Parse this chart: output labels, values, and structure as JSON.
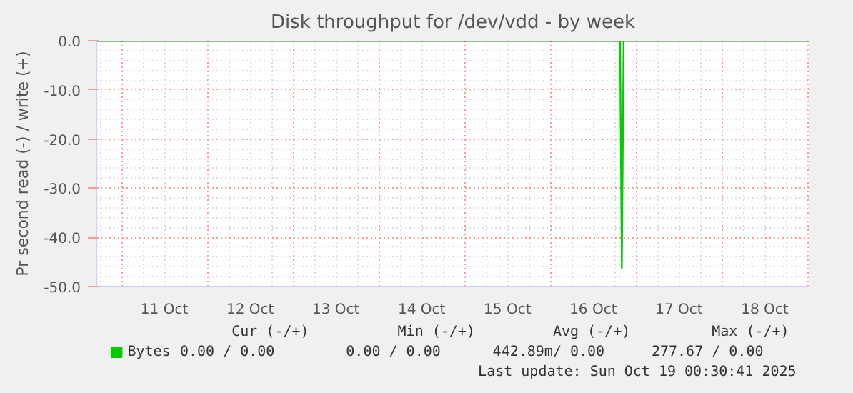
{
  "chart_data": {
    "type": "line",
    "title": "Disk throughput for /dev/vdd - by week",
    "ylabel": "Pr second read (-) / write (+)",
    "x": [
      "2025-10-10T17:00",
      "2025-10-16T19:30",
      "2025-10-16T20:00",
      "2025-10-16T20:30",
      "2025-10-19T00:30"
    ],
    "series": [
      {
        "name": "Bytes",
        "color": "#00cc00",
        "values": [
          0,
          0,
          -46.3,
          0,
          0
        ]
      }
    ],
    "xlim": [
      "2025-10-10T17:00",
      "2025-10-19T00:30"
    ],
    "xticks": [
      {
        "value": "2025-10-11T00:00",
        "label": null
      },
      {
        "value": "2025-10-11T12:00",
        "label": "11 Oct"
      },
      {
        "value": "2025-10-12T00:00",
        "label": null
      },
      {
        "value": "2025-10-12T12:00",
        "label": "12 Oct"
      },
      {
        "value": "2025-10-13T00:00",
        "label": null
      },
      {
        "value": "2025-10-13T12:00",
        "label": "13 Oct"
      },
      {
        "value": "2025-10-14T00:00",
        "label": null
      },
      {
        "value": "2025-10-14T12:00",
        "label": "14 Oct"
      },
      {
        "value": "2025-10-15T00:00",
        "label": null
      },
      {
        "value": "2025-10-15T12:00",
        "label": "15 Oct"
      },
      {
        "value": "2025-10-16T00:00",
        "label": null
      },
      {
        "value": "2025-10-16T12:00",
        "label": "16 Oct"
      },
      {
        "value": "2025-10-17T00:00",
        "label": null
      },
      {
        "value": "2025-10-17T12:00",
        "label": "17 Oct"
      },
      {
        "value": "2025-10-18T00:00",
        "label": null
      },
      {
        "value": "2025-10-18T12:00",
        "label": "18 Oct"
      },
      {
        "value": "2025-10-19T00:00",
        "label": null
      }
    ],
    "ylim": [
      -50,
      0
    ],
    "yticks": [
      {
        "value": 0,
        "label": "0.0"
      },
      {
        "value": -10,
        "label": "-10.0"
      },
      {
        "value": -20,
        "label": "-20.0"
      },
      {
        "value": -30,
        "label": "-30.0"
      },
      {
        "value": -40,
        "label": "-40.0"
      },
      {
        "value": -50,
        "label": "-50.0"
      }
    ],
    "ref_lines": [
      {
        "axis": "y",
        "value": 0,
        "label": null,
        "color": "#000000"
      }
    ],
    "grid": true,
    "legend": "bottom left",
    "marker": "none",
    "line_style": "solid",
    "annotations": [
      "Cur (-/+)",
      "Min (-/+)",
      "Avg (-/+)",
      "Max (-/+)",
      "0.00 /     0.00",
      "0.00 /     0.00",
      "442.89m/    0.00",
      "277.67 /    0.00",
      "Last update: Sun Oct 19 00:30:41 2025"
    ]
  }
}
